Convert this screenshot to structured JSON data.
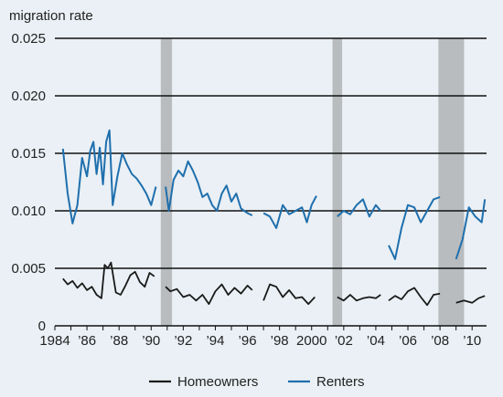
{
  "chart_data": {
    "type": "line",
    "ylabel": "migration rate",
    "ylim": [
      0,
      0.025
    ],
    "xlim": [
      1984,
      2010.9
    ],
    "y_ticks": [
      "0.025",
      "0.020",
      "0.015",
      "0.010",
      "0.005",
      "0"
    ],
    "y_tick_values": [
      0.025,
      0.02,
      0.015,
      0.01,
      0.005,
      0
    ],
    "x_ticks": [
      "1984",
      "’86",
      "’88",
      "’90",
      "’92",
      "’94",
      "’96",
      "’98",
      "2000",
      "’02",
      "’04",
      "’06",
      "’08",
      "’10"
    ],
    "x_tick_values": [
      1984,
      1986,
      1988,
      1990,
      1992,
      1994,
      1996,
      1998,
      2000,
      2002,
      2004,
      2006,
      2008,
      2010
    ],
    "grid": "horizontal",
    "legend_position": "bottom",
    "shaded_periods": [
      [
        1990.6,
        1991.3
      ],
      [
        2001.3,
        2001.9
      ],
      [
        2007.9,
        2009.5
      ]
    ],
    "colors": {
      "homeowners": "#1a1a1a",
      "renters": "#1f6fad",
      "shade": "#b9bcbe",
      "background": "#eaf0f5"
    },
    "series": [
      {
        "name": "Homeowners",
        "segments": [
          [
            [
              1984.5,
              0.0041
            ],
            [
              1984.8,
              0.0036
            ],
            [
              1985.1,
              0.0039
            ],
            [
              1985.4,
              0.0033
            ],
            [
              1985.7,
              0.0037
            ],
            [
              1986.0,
              0.0031
            ],
            [
              1986.3,
              0.0034
            ],
            [
              1986.6,
              0.0027
            ],
            [
              1986.9,
              0.0024
            ],
            [
              1987.1,
              0.0053
            ],
            [
              1987.3,
              0.005
            ],
            [
              1987.5,
              0.0055
            ],
            [
              1987.8,
              0.0029
            ],
            [
              1988.1,
              0.0027
            ],
            [
              1988.4,
              0.0035
            ],
            [
              1988.7,
              0.0044
            ],
            [
              1989.0,
              0.0047
            ],
            [
              1989.3,
              0.0038
            ],
            [
              1989.6,
              0.0034
            ],
            [
              1989.9,
              0.0046
            ],
            [
              1990.2,
              0.0043
            ]
          ],
          [
            [
              1990.9,
              0.0034
            ],
            [
              1991.2,
              0.003
            ],
            [
              1991.6,
              0.0032
            ],
            [
              1992.0,
              0.0025
            ],
            [
              1992.4,
              0.0027
            ],
            [
              1992.8,
              0.0022
            ],
            [
              1993.2,
              0.0027
            ],
            [
              1993.6,
              0.0019
            ],
            [
              1994.0,
              0.003
            ],
            [
              1994.4,
              0.0036
            ],
            [
              1994.8,
              0.0027
            ],
            [
              1995.2,
              0.0033
            ],
            [
              1995.6,
              0.0028
            ],
            [
              1996.0,
              0.0035
            ],
            [
              1996.3,
              0.0031
            ]
          ],
          [
            [
              1997.0,
              0.0022
            ],
            [
              1997.4,
              0.0036
            ],
            [
              1997.8,
              0.0034
            ],
            [
              1998.2,
              0.0025
            ],
            [
              1998.6,
              0.0031
            ],
            [
              1999.0,
              0.0024
            ],
            [
              1999.4,
              0.0025
            ],
            [
              1999.8,
              0.0019
            ],
            [
              2000.2,
              0.0025
            ]
          ],
          [
            [
              2001.6,
              0.0025
            ],
            [
              2002.0,
              0.0022
            ],
            [
              2002.4,
              0.0027
            ],
            [
              2002.8,
              0.0022
            ],
            [
              2003.2,
              0.0024
            ],
            [
              2003.6,
              0.0025
            ],
            [
              2004.0,
              0.0024
            ],
            [
              2004.3,
              0.0027
            ]
          ],
          [
            [
              2004.8,
              0.0022
            ],
            [
              2005.2,
              0.0026
            ],
            [
              2005.6,
              0.0023
            ],
            [
              2006.0,
              0.003
            ],
            [
              2006.4,
              0.0033
            ],
            [
              2006.8,
              0.0025
            ],
            [
              2007.2,
              0.0018
            ],
            [
              2007.6,
              0.0027
            ],
            [
              2008.0,
              0.0028
            ]
          ],
          [
            [
              2009.0,
              0.002
            ],
            [
              2009.5,
              0.0022
            ],
            [
              2010.0,
              0.002
            ],
            [
              2010.4,
              0.0024
            ],
            [
              2010.8,
              0.0026
            ]
          ]
        ]
      },
      {
        "name": "Renters",
        "segments": [
          [
            [
              1984.5,
              0.0154
            ],
            [
              1984.8,
              0.0115
            ],
            [
              1985.1,
              0.0089
            ],
            [
              1985.4,
              0.0105
            ],
            [
              1985.7,
              0.0146
            ],
            [
              1986.0,
              0.013
            ],
            [
              1986.2,
              0.0152
            ],
            [
              1986.4,
              0.016
            ],
            [
              1986.6,
              0.0132
            ],
            [
              1986.8,
              0.0155
            ],
            [
              1987.0,
              0.0123
            ],
            [
              1987.2,
              0.016
            ],
            [
              1987.4,
              0.017
            ],
            [
              1987.6,
              0.0105
            ],
            [
              1987.9,
              0.013
            ],
            [
              1988.2,
              0.015
            ],
            [
              1988.5,
              0.014
            ],
            [
              1988.8,
              0.0132
            ],
            [
              1989.1,
              0.0128
            ],
            [
              1989.4,
              0.0122
            ],
            [
              1989.7,
              0.0115
            ],
            [
              1990.0,
              0.0105
            ],
            [
              1990.3,
              0.0121
            ]
          ],
          [
            [
              1990.9,
              0.0121
            ],
            [
              1991.1,
              0.01
            ],
            [
              1991.4,
              0.0127
            ],
            [
              1991.7,
              0.0135
            ],
            [
              1992.0,
              0.013
            ],
            [
              1992.3,
              0.0143
            ],
            [
              1992.6,
              0.0135
            ],
            [
              1992.9,
              0.0125
            ],
            [
              1993.2,
              0.0112
            ],
            [
              1993.5,
              0.0115
            ],
            [
              1993.8,
              0.0105
            ],
            [
              1994.1,
              0.01
            ],
            [
              1994.4,
              0.0115
            ],
            [
              1994.7,
              0.0122
            ],
            [
              1995.0,
              0.0108
            ],
            [
              1995.3,
              0.0115
            ],
            [
              1995.6,
              0.0102
            ],
            [
              1996.0,
              0.0098
            ],
            [
              1996.3,
              0.0096
            ]
          ],
          [
            [
              1997.0,
              0.0098
            ],
            [
              1997.4,
              0.0095
            ],
            [
              1997.8,
              0.0085
            ],
            [
              1998.2,
              0.0105
            ],
            [
              1998.6,
              0.0097
            ],
            [
              1999.0,
              0.01
            ],
            [
              1999.4,
              0.0103
            ],
            [
              1999.7,
              0.009
            ],
            [
              2000.0,
              0.0105
            ],
            [
              2000.3,
              0.0113
            ]
          ],
          [
            [
              2001.6,
              0.0095
            ],
            [
              2002.0,
              0.01
            ],
            [
              2002.4,
              0.0097
            ],
            [
              2002.8,
              0.0105
            ],
            [
              2003.2,
              0.011
            ],
            [
              2003.6,
              0.0095
            ],
            [
              2004.0,
              0.0105
            ],
            [
              2004.3,
              0.01
            ]
          ],
          [
            [
              2004.8,
              0.007
            ],
            [
              2005.2,
              0.0058
            ],
            [
              2005.6,
              0.0085
            ],
            [
              2006.0,
              0.0105
            ],
            [
              2006.4,
              0.0103
            ],
            [
              2006.8,
              0.009
            ],
            [
              2007.2,
              0.01
            ],
            [
              2007.6,
              0.011
            ],
            [
              2008.0,
              0.0112
            ]
          ],
          [
            [
              2009.0,
              0.0058
            ],
            [
              2009.4,
              0.0075
            ],
            [
              2009.8,
              0.0103
            ],
            [
              2010.2,
              0.0095
            ],
            [
              2010.6,
              0.009
            ],
            [
              2010.8,
              0.011
            ]
          ]
        ]
      }
    ]
  }
}
